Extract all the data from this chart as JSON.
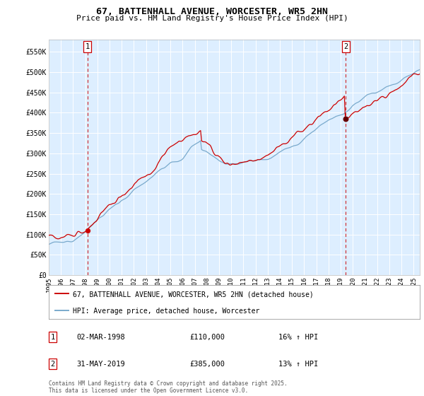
{
  "title": "67, BATTENHALL AVENUE, WORCESTER, WR5 2HN",
  "subtitle": "Price paid vs. HM Land Registry's House Price Index (HPI)",
  "legend_line1": "67, BATTENHALL AVENUE, WORCESTER, WR5 2HN (detached house)",
  "legend_line2": "HPI: Average price, detached house, Worcester",
  "annotation1_label": "1",
  "annotation1_date": "02-MAR-1998",
  "annotation1_price": "£110,000",
  "annotation1_hpi": "16% ↑ HPI",
  "annotation1_year": 1998.17,
  "annotation1_value": 110000,
  "annotation2_label": "2",
  "annotation2_date": "31-MAY-2019",
  "annotation2_price": "£385,000",
  "annotation2_hpi": "13% ↑ HPI",
  "annotation2_year": 2019.42,
  "annotation2_value": 385000,
  "red_color": "#cc0000",
  "blue_color": "#7aaacc",
  "background_color": "#ffffff",
  "plot_bg_color": "#ddeeff",
  "grid_color": "#ffffff",
  "footer": "Contains HM Land Registry data © Crown copyright and database right 2025.\nThis data is licensed under the Open Government Licence v3.0.",
  "ylim": [
    0,
    580000
  ],
  "yticks": [
    0,
    50000,
    100000,
    150000,
    200000,
    250000,
    300000,
    350000,
    400000,
    450000,
    500000,
    550000
  ],
  "xlim": [
    1995,
    2025.5
  ],
  "n_points": 370
}
